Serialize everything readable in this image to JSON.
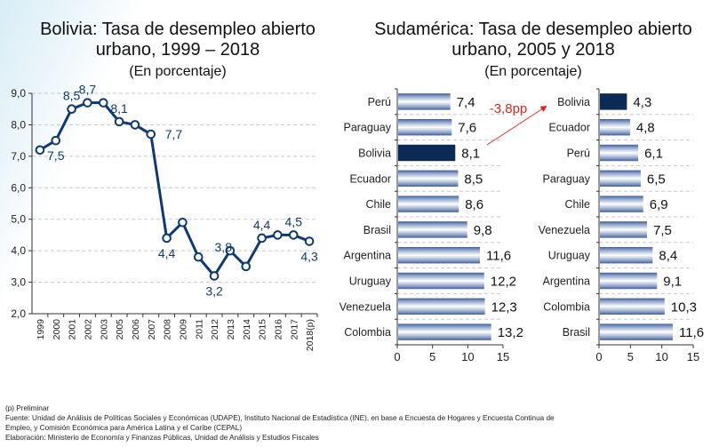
{
  "chart_data": [
    {
      "type": "line",
      "title": "Bolivia: Tasa de desempleo abierto urbano, 1999 – 2018",
      "subtitle": "(En porcentaje)",
      "xlabel": "",
      "ylabel": "",
      "ylim": [
        2.0,
        9.0
      ],
      "yticks": [
        "2,0",
        "3,0",
        "4,0",
        "5,0",
        "6,0",
        "7,0",
        "8,0",
        "9,0"
      ],
      "grid": true,
      "categories": [
        "1999",
        "2000",
        "2001",
        "2002",
        "2003",
        "2005",
        "2006",
        "2007",
        "2008",
        "2009",
        "2011",
        "2012",
        "2013",
        "2014",
        "2015",
        "2016",
        "2017",
        "2018(p)"
      ],
      "series": [
        {
          "name": "Bolivia",
          "color": "#0d3a73",
          "values": [
            7.2,
            7.5,
            8.5,
            8.7,
            8.7,
            8.1,
            8.0,
            7.7,
            4.4,
            4.9,
            3.8,
            3.2,
            4.0,
            3.5,
            4.4,
            4.5,
            4.5,
            4.3
          ]
        }
      ],
      "data_labels": [
        {
          "index": 1,
          "text": "7,5",
          "pos": "below"
        },
        {
          "index": 2,
          "text": "8,5",
          "pos": "above"
        },
        {
          "index": 3,
          "text": "8,7",
          "pos": "above"
        },
        {
          "index": 5,
          "text": "8,1",
          "pos": "above"
        },
        {
          "index": 7,
          "text": "7,7",
          "pos": "right"
        },
        {
          "index": 8,
          "text": "4,4",
          "pos": "below"
        },
        {
          "index": 10,
          "text": "3,8",
          "pos": "above-right"
        },
        {
          "index": 11,
          "text": "3,2",
          "pos": "below"
        },
        {
          "index": 14,
          "text": "4,4",
          "pos": "above"
        },
        {
          "index": 16,
          "text": "4,5",
          "pos": "above"
        },
        {
          "index": 17,
          "text": "4,3",
          "pos": "below"
        }
      ]
    },
    {
      "type": "bar",
      "orientation": "horizontal",
      "title": "Sudamérica: Tasa de desempleo abierto urbano, 2005 y 2018",
      "subtitle": "(En porcentaje)",
      "panel": "2005",
      "xlim": [
        0,
        15
      ],
      "xticks": [
        "0",
        "5",
        "10",
        "15"
      ],
      "categories": [
        "Perú",
        "Paraguay",
        "Bolivia",
        "Ecuador",
        "Chile",
        "Brasil",
        "Argentina",
        "Uruguay",
        "Venezuela",
        "Colombia"
      ],
      "values": [
        7.4,
        7.6,
        8.1,
        8.5,
        8.6,
        9.8,
        11.6,
        12.2,
        12.3,
        13.2
      ],
      "value_labels": [
        "7,4",
        "7,6",
        "8,1",
        "8,5",
        "8,6",
        "9,8",
        "11,6",
        "12,2",
        "12,3",
        "13,2"
      ],
      "highlight": "Bolivia"
    },
    {
      "type": "bar",
      "orientation": "horizontal",
      "panel": "2018",
      "xlim": [
        0,
        15
      ],
      "xticks": [
        "0",
        "5",
        "10",
        "15"
      ],
      "categories": [
        "Bolivia",
        "Ecuador",
        "Perú",
        "Paraguay",
        "Chile",
        "Venezuela",
        "Uruguay",
        "Argentina",
        "Colombia",
        "Brasil"
      ],
      "values": [
        4.3,
        4.8,
        6.1,
        6.5,
        6.9,
        7.5,
        8.4,
        9.1,
        10.3,
        11.6
      ],
      "value_labels": [
        "4,3",
        "4,8",
        "6,1",
        "6,5",
        "6,9",
        "7,5",
        "8,4",
        "9,1",
        "10,3",
        "11,6"
      ],
      "highlight": "Bolivia"
    }
  ],
  "left": {
    "title_line1": "Bolivia: Tasa de desempleo abierto",
    "title_line2": "urbano, 1999 – 2018",
    "subtitle": "(En porcentaje)"
  },
  "right": {
    "title_line1": "Sudamérica: Tasa de desempleo abierto",
    "title_line2": "urbano, 2005 y 2018",
    "subtitle": "(En porcentaje)",
    "annotation": "-3,8pp"
  },
  "colors": {
    "line": "#0d3a73",
    "highlight_bar": "#0b2a55",
    "bar_dark": "#4a6ba5",
    "bar_light": "#ffffff",
    "annotation": "#e8201a",
    "grid": "#c8c8c8"
  },
  "footer": {
    "note": "(p) Preliminar",
    "source_line1": "Fuente: Unidad de Análisis de Políticas Sociales y Económicas (UDAPE), Instituto Nacional de Estadística (INE), en base a Encuesta de Hogares y Encuesta Continua de",
    "source_line2": "Empleo, y Comisión Económica para América Latina y el Caribe (CEPAL)",
    "elaboration": "Elaboración: Ministerio de Economía y Finanzas Públicas, Unidad de Análisis y Estudios Fiscales"
  }
}
